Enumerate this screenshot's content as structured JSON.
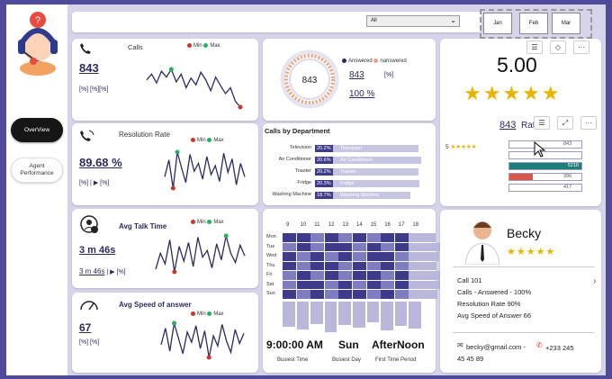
{
  "filter": {
    "selected": "All"
  },
  "months": [
    "Jan",
    "Feb",
    "Mar"
  ],
  "nav": {
    "overview": "OverView",
    "agent": "Agent\nPerformance"
  },
  "calls": {
    "title": "Calls",
    "value": "843",
    "min": "Min",
    "max": "Max",
    "range": "[%] [%][%]",
    "spark": [
      52,
      58,
      49,
      61,
      55,
      63,
      50,
      58,
      44,
      54,
      47,
      60,
      52,
      41,
      55,
      46,
      38,
      44,
      30,
      24
    ]
  },
  "donut": {
    "center": "843",
    "answered_label": "Answered",
    "unanswered_label": "nanswered",
    "answered_value": "843",
    "percent": "100 %",
    "range": "[%]",
    "fraction": 1.0
  },
  "rating": {
    "score": "5.00",
    "stars": 5,
    "count": "843",
    "count_label": "Rat",
    "row_label": "5",
    "bars": [
      {
        "value": "843",
        "fraction": 0.17,
        "color": "#e4e3f1"
      },
      {
        "value": "",
        "fraction": 0.0,
        "color": "#e4e3f1"
      },
      {
        "value": "5218",
        "fraction": 1.0,
        "color": "#1e7e7a"
      },
      {
        "value": "396",
        "fraction": 0.08,
        "color": "#d9574a"
      },
      {
        "value": "417",
        "fraction": 0.08,
        "color": "#e4e3f1"
      }
    ]
  },
  "resolution": {
    "title": "Resolution Rate",
    "value": "89.68 %",
    "min": "Min",
    "max": "Max",
    "range": "[%] | ▶ [%]",
    "spark": [
      40,
      55,
      30,
      62,
      48,
      35,
      60,
      45,
      52,
      38,
      58,
      42,
      50,
      36,
      61,
      44,
      56,
      33,
      52,
      40
    ]
  },
  "departments": {
    "title": "Calls by Department",
    "rows": [
      {
        "name": "Television",
        "pct": "20.2%",
        "label": "Television",
        "fraction": 0.82
      },
      {
        "name": "Air Conditioner",
        "pct": "20.6%",
        "label": "Air Conditioner",
        "fraction": 0.84
      },
      {
        "name": "Toaster",
        "pct": "20.2%",
        "label": "Toaster",
        "fraction": 0.82
      },
      {
        "name": "Fridge",
        "pct": "20.3%",
        "label": "Fridge",
        "fraction": 0.83
      },
      {
        "name": "Washing Machine",
        "pct": "18.7%",
        "label": "Washing Machine",
        "fraction": 0.76
      }
    ]
  },
  "talk": {
    "title": "Avg Talk Time",
    "value": "3 m 46s",
    "sub": "3 m 46s",
    "min": "Min",
    "max": "Max",
    "range": "[%]",
    "spark": [
      38,
      50,
      42,
      60,
      36,
      55,
      44,
      58,
      40,
      62,
      47,
      52,
      39,
      57,
      45,
      63,
      50,
      43,
      56,
      48
    ]
  },
  "heatmap": {
    "hours": [
      "9",
      "10",
      "11",
      "12",
      "13",
      "14",
      "15",
      "16",
      "17",
      "18"
    ],
    "days": [
      "Mon",
      "Tue",
      "Wed",
      "Thu",
      "Fri",
      "Sat",
      "Sun"
    ],
    "busiest_time": "9:00:00 AM",
    "busiest_time_label": "Busiest Time",
    "busiest_day": "Sun",
    "busiest_day_label": "Busiest Day",
    "first_period": "AfterNoon",
    "first_period_label": "First Time Period",
    "col_totals": [
      0.62,
      0.68,
      0.55,
      0.75,
      0.58,
      0.64,
      0.52,
      0.7,
      0.6,
      0.66
    ]
  },
  "speed": {
    "title": "Avg Speed of answer",
    "value": "67",
    "min": "Min",
    "max": "Max",
    "range": "[%] [%]",
    "spark": [
      45,
      58,
      40,
      62,
      50,
      38,
      55,
      47,
      60,
      42,
      56,
      35,
      52,
      44,
      61,
      48,
      39,
      57,
      46,
      54
    ]
  },
  "agent": {
    "name": "Becky",
    "stars": 5,
    "line1": "Call 101",
    "line2": "Calls - Answered - 100%",
    "line3": "Resolution Rate 90%",
    "line4": "Avg Speed of Answer 66",
    "email": "becky@gmail.com -",
    "phone": "+233 245\n45 45 89"
  },
  "colors": {
    "frame": "#4f4a9a",
    "canvas": "#d6d4ea",
    "accent_dark": "#2b2b5e",
    "star": "#e8b400",
    "min_dot": "#c0392b",
    "max_dot": "#27ae60",
    "heat_dark": "#3e3c8a",
    "heat_light": "#b9b7dc"
  }
}
